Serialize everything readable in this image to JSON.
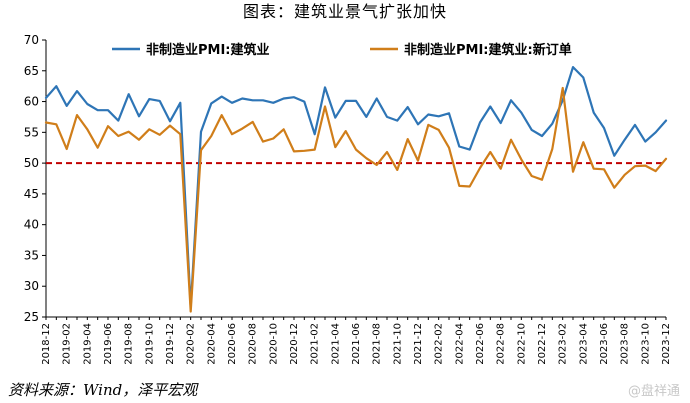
{
  "title": "图表：建筑业景气扩张加快",
  "source": "资料来源：Wind，泽平宏观",
  "watermark": "@盘祥通",
  "chart_data": {
    "type": "line",
    "title": "图表：建筑业景气扩张加快",
    "ylim": [
      25,
      70
    ],
    "yticks": [
      25,
      30,
      35,
      40,
      45,
      50,
      55,
      60,
      65,
      70
    ],
    "x": [
      "2018-12",
      "2019-01",
      "2019-02",
      "2019-03",
      "2019-04",
      "2019-05",
      "2019-06",
      "2019-07",
      "2019-08",
      "2019-09",
      "2019-10",
      "2019-11",
      "2019-12",
      "2020-01",
      "2020-02",
      "2020-03",
      "2020-04",
      "2020-05",
      "2020-06",
      "2020-07",
      "2020-08",
      "2020-09",
      "2020-10",
      "2020-11",
      "2020-12",
      "2021-01",
      "2021-02",
      "2021-03",
      "2021-04",
      "2021-05",
      "2021-06",
      "2021-07",
      "2021-08",
      "2021-09",
      "2021-10",
      "2021-11",
      "2021-12",
      "2022-01",
      "2022-02",
      "2022-03",
      "2022-04",
      "2022-05",
      "2022-06",
      "2022-07",
      "2022-08",
      "2022-09",
      "2022-10",
      "2022-11",
      "2022-12",
      "2023-01",
      "2023-02",
      "2023-03",
      "2023-04",
      "2023-05",
      "2023-06",
      "2023-07",
      "2023-08",
      "2023-09",
      "2023-10",
      "2023-11",
      "2023-12"
    ],
    "xtick_labels": [
      "2018-12",
      "2019-02",
      "2019-04",
      "2019-06",
      "2019-08",
      "2019-10",
      "2019-12",
      "2020-02",
      "2020-04",
      "2020-06",
      "2020-08",
      "2020-10",
      "2020-12",
      "2021-02",
      "2021-04",
      "2021-06",
      "2021-08",
      "2021-10",
      "2021-12",
      "2022-02",
      "2022-04",
      "2022-06",
      "2022-08",
      "2022-10",
      "2022-12",
      "2023-02",
      "2023-04",
      "2023-06",
      "2023-08",
      "2023-10",
      "2023-12"
    ],
    "reference_line": {
      "y": 50,
      "color": "#c00000",
      "style": "dashed"
    },
    "series": [
      {
        "name": "非制造业PMI:建筑业",
        "color": "#2e75b6",
        "values": [
          60.6,
          62.5,
          59.3,
          61.7,
          59.6,
          58.6,
          58.6,
          56.9,
          61.2,
          57.6,
          60.4,
          60.1,
          56.8,
          59.8,
          26.6,
          55.1,
          59.7,
          60.8,
          59.8,
          60.5,
          60.2,
          60.2,
          59.8,
          60.5,
          60.7,
          60.0,
          54.7,
          62.3,
          57.4,
          60.1,
          60.1,
          57.5,
          60.5,
          57.5,
          56.9,
          59.1,
          56.3,
          57.9,
          57.6,
          58.1,
          52.7,
          52.2,
          56.6,
          59.2,
          56.5,
          60.2,
          58.2,
          55.4,
          54.4,
          56.4,
          60.2,
          65.6,
          63.9,
          58.2,
          55.7,
          51.2,
          53.8,
          56.2,
          53.5,
          55.0,
          56.9
        ]
      },
      {
        "name": "非制造业PMI:建筑业:新订单",
        "color": "#d07e1a",
        "values": [
          56.6,
          56.3,
          52.3,
          57.8,
          55.5,
          52.5,
          56.0,
          54.4,
          55.1,
          53.8,
          55.5,
          54.6,
          56.1,
          54.7,
          25.9,
          52.1,
          54.4,
          57.8,
          54.7,
          55.6,
          56.7,
          53.5,
          54.0,
          55.5,
          51.9,
          52.0,
          52.2,
          59.2,
          52.6,
          55.2,
          52.2,
          50.8,
          49.7,
          51.8,
          48.9,
          53.9,
          50.4,
          56.2,
          55.4,
          52.5,
          46.3,
          46.2,
          49.2,
          51.8,
          49.1,
          53.8,
          50.6,
          47.9,
          47.3,
          52.3,
          62.2,
          48.6,
          53.4,
          49.1,
          49.0,
          46.0,
          48.1,
          49.5,
          49.6,
          48.7,
          50.7
        ]
      }
    ]
  }
}
